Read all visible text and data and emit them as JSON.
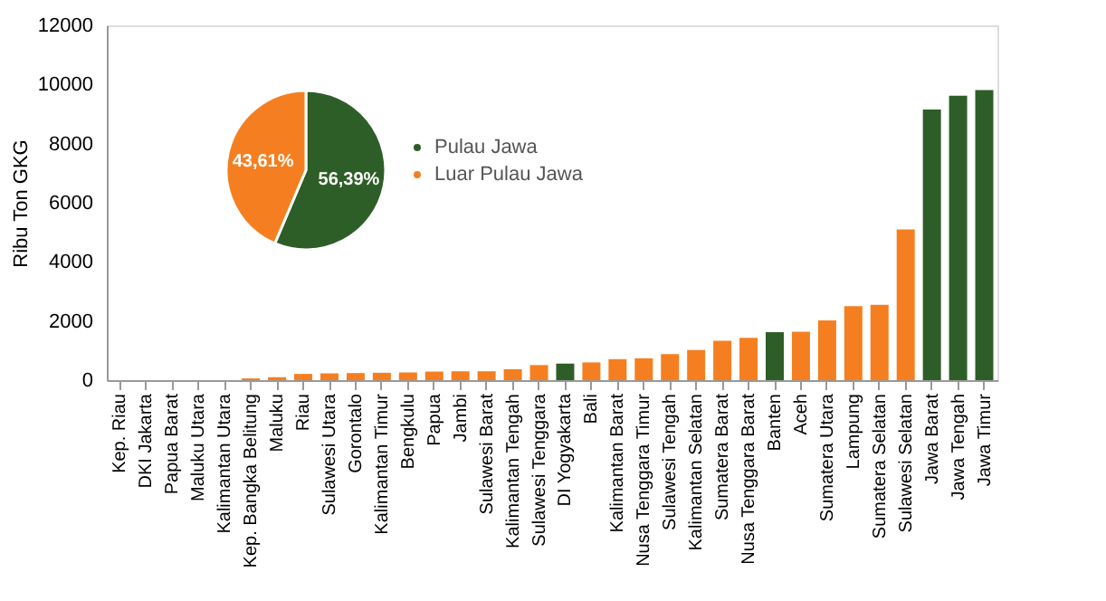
{
  "chart_data": [
    {
      "type": "bar",
      "ylabel": "Ribu Ton GKG",
      "ylim": [
        0,
        12000
      ],
      "yticks": [
        0,
        2000,
        4000,
        6000,
        8000,
        10000,
        12000
      ],
      "grid": false,
      "categories": [
        "Kep. Riau",
        "DKI Jakarta",
        "Papua Barat",
        "Maluku Utara",
        "Kalimantan Utara",
        "Kep. Bangka Belitung",
        "Maluku",
        "Riau",
        "Sulawesi Utara",
        "Gorontalo",
        "Kalimantan Timur",
        "Bengkulu",
        "Papua",
        "Jambi",
        "Sulawesi Barat",
        "Kalimantan Tengah",
        "Sulawesi Tenggara",
        "DI Yogyakarta",
        "Bali",
        "Kalimantan Barat",
        "Nusa Tenggara Timur",
        "Sulawesi Tengah",
        "Kalimantan Selatan",
        "Sumatera Barat",
        "Nusa Tenggara Barat",
        "Banten",
        "Aceh",
        "Sumatera Utara",
        "Lampung",
        "Sumatera Selatan",
        "Sulawesi Selatan",
        "Jawa Barat",
        "Jawa Tengah",
        "Jawa Timur"
      ],
      "values": [
        0,
        0,
        null,
        null,
        null,
        60,
        100,
        210,
        230,
        240,
        250,
        260,
        290,
        300,
        300,
        370,
        510,
        560,
        600,
        710,
        740,
        880,
        1020,
        1330,
        1430,
        1620,
        1640,
        2020,
        2500,
        2550,
        5100,
        9150,
        9620,
        9810
      ],
      "colors": [
        "#f57f20",
        "#f57f20",
        "#f57f20",
        "#f57f20",
        "#f57f20",
        "#f57f20",
        "#f57f20",
        "#f57f20",
        "#f57f20",
        "#f57f20",
        "#f57f20",
        "#f57f20",
        "#f57f20",
        "#f57f20",
        "#f57f20",
        "#f57f20",
        "#f57f20",
        "#2e5e27",
        "#f57f20",
        "#f57f20",
        "#f57f20",
        "#f57f20",
        "#f57f20",
        "#f57f20",
        "#f57f20",
        "#2e5e27",
        "#f57f20",
        "#f57f20",
        "#f57f20",
        "#f57f20",
        "#f57f20",
        "#2e5e27",
        "#2e5e27",
        "#2e5e27"
      ]
    },
    {
      "type": "pie",
      "categories": [
        "Pulau Jawa",
        "Luar Pulau Jawa"
      ],
      "values": [
        56.39,
        43.61
      ],
      "colors": [
        "#2e5e27",
        "#f57f20"
      ],
      "value_labels": [
        "56,39%",
        "43,61%"
      ],
      "legend": "right"
    }
  ]
}
